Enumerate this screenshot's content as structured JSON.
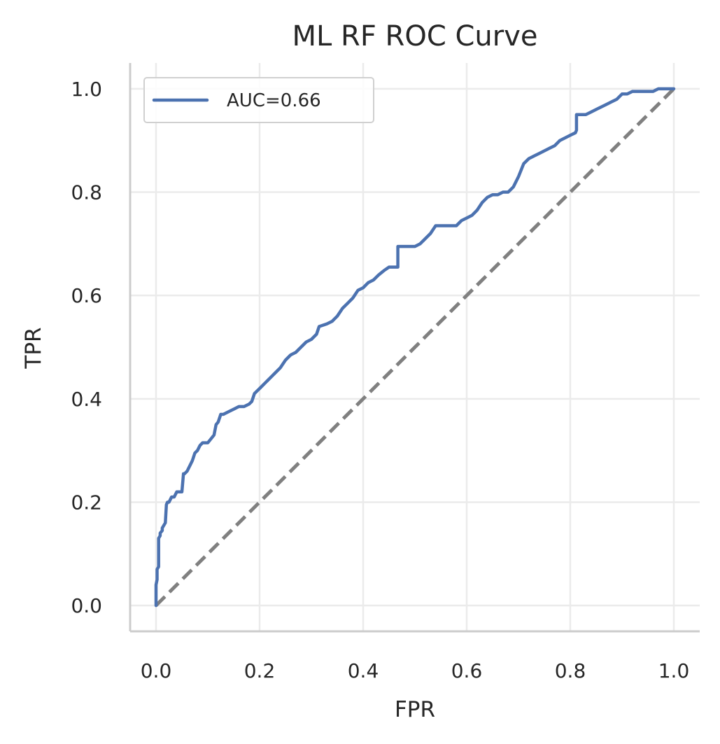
{
  "chart_data": {
    "type": "line",
    "title": "ML RF ROC Curve",
    "xlabel": "FPR",
    "ylabel": "TPR",
    "xlim": [
      -0.05,
      1.05
    ],
    "ylim": [
      -0.05,
      1.05
    ],
    "xticks": [
      0.0,
      0.2,
      0.4,
      0.6,
      0.8,
      1.0
    ],
    "yticks": [
      0.0,
      0.2,
      0.4,
      0.6,
      0.8,
      1.0
    ],
    "xtick_labels": [
      "0.0",
      "0.2",
      "0.4",
      "0.6",
      "0.8",
      "1.0"
    ],
    "ytick_labels": [
      "0.0",
      "0.2",
      "0.4",
      "0.6",
      "0.8",
      "1.0"
    ],
    "grid": true,
    "legend_position": "top-left",
    "series": [
      {
        "name": "AUC=0.66",
        "color": "#4c72b0",
        "style": "solid",
        "x": [
          0.0,
          0.0,
          0.002,
          0.002,
          0.005,
          0.005,
          0.008,
          0.008,
          0.012,
          0.012,
          0.018,
          0.02,
          0.022,
          0.025,
          0.03,
          0.032,
          0.035,
          0.04,
          0.05,
          0.053,
          0.055,
          0.06,
          0.07,
          0.075,
          0.08,
          0.085,
          0.09,
          0.1,
          0.112,
          0.116,
          0.12,
          0.125,
          0.13,
          0.14,
          0.15,
          0.16,
          0.17,
          0.18,
          0.185,
          0.19,
          0.195,
          0.2,
          0.21,
          0.22,
          0.23,
          0.24,
          0.25,
          0.26,
          0.27,
          0.28,
          0.29,
          0.3,
          0.31,
          0.315,
          0.33,
          0.34,
          0.35,
          0.36,
          0.37,
          0.38,
          0.39,
          0.4,
          0.41,
          0.42,
          0.43,
          0.44,
          0.45,
          0.46,
          0.467,
          0.467,
          0.48,
          0.5,
          0.51,
          0.52,
          0.53,
          0.54,
          0.55,
          0.56,
          0.57,
          0.58,
          0.59,
          0.6,
          0.61,
          0.62,
          0.63,
          0.64,
          0.65,
          0.66,
          0.67,
          0.68,
          0.69,
          0.7,
          0.71,
          0.72,
          0.73,
          0.74,
          0.75,
          0.76,
          0.77,
          0.78,
          0.79,
          0.8,
          0.81,
          0.812,
          0.812,
          0.82,
          0.83,
          0.84,
          0.85,
          0.86,
          0.87,
          0.88,
          0.89,
          0.9,
          0.91,
          0.92,
          0.93,
          0.94,
          0.95,
          0.96,
          0.97,
          0.98,
          0.99,
          1.0
        ],
        "y": [
          0.0,
          0.04,
          0.05,
          0.07,
          0.075,
          0.13,
          0.135,
          0.14,
          0.145,
          0.15,
          0.16,
          0.195,
          0.2,
          0.2,
          0.21,
          0.21,
          0.21,
          0.22,
          0.22,
          0.255,
          0.255,
          0.26,
          0.28,
          0.295,
          0.3,
          0.31,
          0.315,
          0.315,
          0.33,
          0.35,
          0.355,
          0.37,
          0.37,
          0.375,
          0.38,
          0.385,
          0.385,
          0.39,
          0.395,
          0.41,
          0.415,
          0.42,
          0.43,
          0.44,
          0.45,
          0.46,
          0.475,
          0.485,
          0.49,
          0.5,
          0.51,
          0.515,
          0.525,
          0.54,
          0.545,
          0.55,
          0.56,
          0.575,
          0.585,
          0.595,
          0.61,
          0.615,
          0.625,
          0.63,
          0.64,
          0.648,
          0.655,
          0.655,
          0.655,
          0.695,
          0.695,
          0.695,
          0.7,
          0.71,
          0.72,
          0.735,
          0.735,
          0.735,
          0.735,
          0.735,
          0.745,
          0.75,
          0.755,
          0.765,
          0.78,
          0.79,
          0.795,
          0.795,
          0.8,
          0.8,
          0.81,
          0.83,
          0.855,
          0.865,
          0.87,
          0.875,
          0.88,
          0.885,
          0.89,
          0.9,
          0.905,
          0.91,
          0.915,
          0.92,
          0.95,
          0.95,
          0.95,
          0.955,
          0.96,
          0.965,
          0.97,
          0.975,
          0.98,
          0.99,
          0.99,
          0.995,
          0.995,
          0.995,
          0.995,
          0.995,
          1.0,
          1.0,
          1.0,
          1.0
        ]
      },
      {
        "name": "",
        "color": "#808080",
        "style": "dashed",
        "x": [
          0.0,
          1.0
        ],
        "y": [
          0.0,
          1.0
        ]
      }
    ]
  },
  "colors": {
    "grid": "#ebebeb",
    "spine": "#cccccc",
    "text": "#262626",
    "legend_border": "#d0d0d0"
  }
}
